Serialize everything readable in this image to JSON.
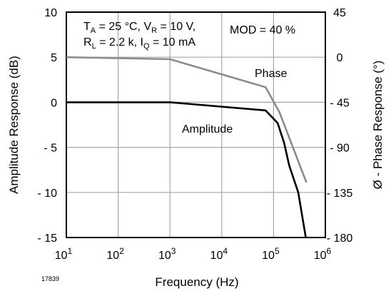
{
  "chart_data": {
    "type": "line",
    "xlabel": "Frequency (Hz)",
    "ylabel": "Amplitude Response (dB)",
    "y2label": "Ø - Phase Response (°)",
    "x_scale": "log",
    "xlim": [
      10,
      1000000
    ],
    "ylim": [
      -15,
      10
    ],
    "y2lim": [
      -180,
      45
    ],
    "grid": true,
    "x_ticks": [
      {
        "base": "10",
        "exp": "1",
        "value": 10
      },
      {
        "base": "10",
        "exp": "2",
        "value": 100
      },
      {
        "base": "10",
        "exp": "3",
        "value": 1000
      },
      {
        "base": "10",
        "exp": "4",
        "value": 10000
      },
      {
        "base": "10",
        "exp": "5",
        "value": 100000
      },
      {
        "base": "10",
        "exp": "6",
        "value": 1000000
      }
    ],
    "y_ticks": [
      {
        "label": "10",
        "value": 10
      },
      {
        "label": "5",
        "value": 5
      },
      {
        "label": "0",
        "value": 0
      },
      {
        "label": "- 5",
        "value": -5
      },
      {
        "label": "- 10",
        "value": -10
      },
      {
        "label": "- 15",
        "value": -15
      }
    ],
    "y2_ticks": [
      {
        "label": "45",
        "value": 45
      },
      {
        "label": "0",
        "value": 0
      },
      {
        "label": "- 45",
        "value": -45
      },
      {
        "label": "- 90",
        "value": -90
      },
      {
        "label": "- 135",
        "value": -135
      },
      {
        "label": "- 180",
        "value": -180
      }
    ],
    "series": [
      {
        "name": "Amplitude",
        "axis": "left",
        "color": "#000000",
        "x": [
          10,
          1000,
          70000,
          120000,
          160000,
          200000,
          300000,
          420000
        ],
        "y": [
          0,
          0,
          -0.9,
          -2.3,
          -4.5,
          -7,
          -10,
          -15
        ]
      },
      {
        "name": "Phase",
        "axis": "right",
        "color": "#8c8c8c",
        "x": [
          10,
          1000,
          70000,
          130000,
          430000
        ],
        "y": [
          0,
          -2,
          -30,
          -55,
          -125
        ]
      }
    ],
    "annotations": {
      "cond_line1": {
        "a": "T",
        "a_sub": "A",
        "b": " = 25 °C, V",
        "b_sub": "R",
        "c": " = 10 V,"
      },
      "cond_line2": {
        "a": "R",
        "a_sub": "L",
        "b": " = 2.2 k, I",
        "b_sub": "Q",
        "c": " = 10 mA"
      },
      "mod": "MOD = 40 %",
      "figure_id": "17839"
    }
  }
}
